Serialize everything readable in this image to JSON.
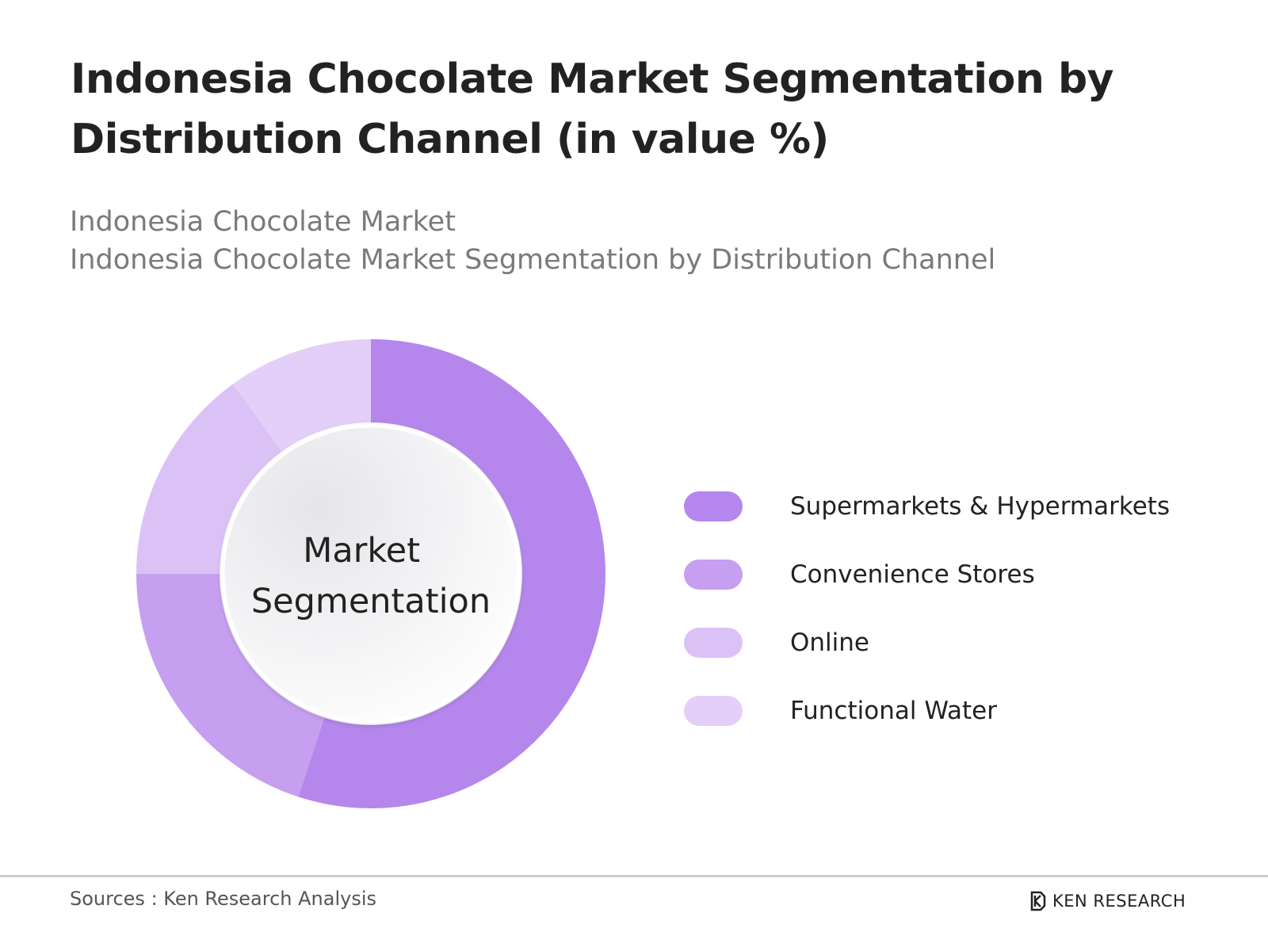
{
  "title": "Indonesia Chocolate Market Segmentation by Distribution Channel (in value %)",
  "subtitle_lines": [
    "Indonesia Chocolate Market",
    "Indonesia Chocolate Market Segmentation by Distribution Channel"
  ],
  "center_label_lines": [
    "Market",
    "Segmentation"
  ],
  "source": "Sources : Ken Research Analysis",
  "brand": {
    "name": "KEN RESEARCH",
    "icon": "ken-research-logo-icon"
  },
  "chart_data": {
    "type": "pie",
    "variant": "donut",
    "categories": [
      "Supermarkets & Hypermarkets",
      "Convenience Stores",
      "Online",
      "Functional Water"
    ],
    "values": [
      55,
      20,
      15,
      10
    ],
    "colors": [
      "#b586ec",
      "#c69ff0",
      "#dbc2f6",
      "#e4cff8"
    ],
    "legend_position": "right"
  }
}
